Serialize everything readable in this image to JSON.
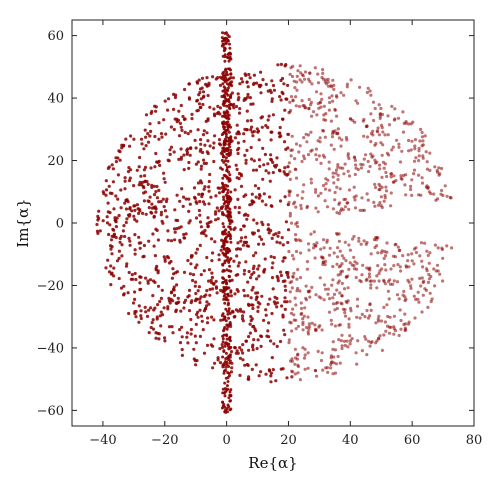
{
  "chart_data": {
    "type": "scatter",
    "title": "",
    "xlabel": "Re{α}",
    "ylabel": "Im{α}",
    "xlim": [
      -50,
      80
    ],
    "ylim": [
      65,
      -65
    ],
    "y_axis_inverted": true,
    "grid": false,
    "legend": "none",
    "x_ticks": [
      -40,
      -20,
      0,
      20,
      40,
      60,
      80
    ],
    "y_ticks": [
      -60,
      -40,
      -20,
      0,
      20,
      40,
      60
    ],
    "x_tick_labels": [
      "−40",
      "−20",
      "0",
      "20",
      "40",
      "60",
      "80"
    ],
    "y_tick_labels": [
      "−60",
      "−40",
      "−20",
      "0",
      "20",
      "40",
      "60"
    ],
    "point_color": "#8b0000",
    "description_of_points": "fractal point set (Mandelbrot-like), symmetric about Im=0",
    "region": {
      "re_min": -42,
      "re_max": 74,
      "im_min": -51,
      "im_max": 51,
      "spine_re": 0,
      "spine_im_extent": [
        -61,
        61
      ],
      "real_axis_gap_start": 28,
      "real_axis_gap_end": 74
    }
  }
}
